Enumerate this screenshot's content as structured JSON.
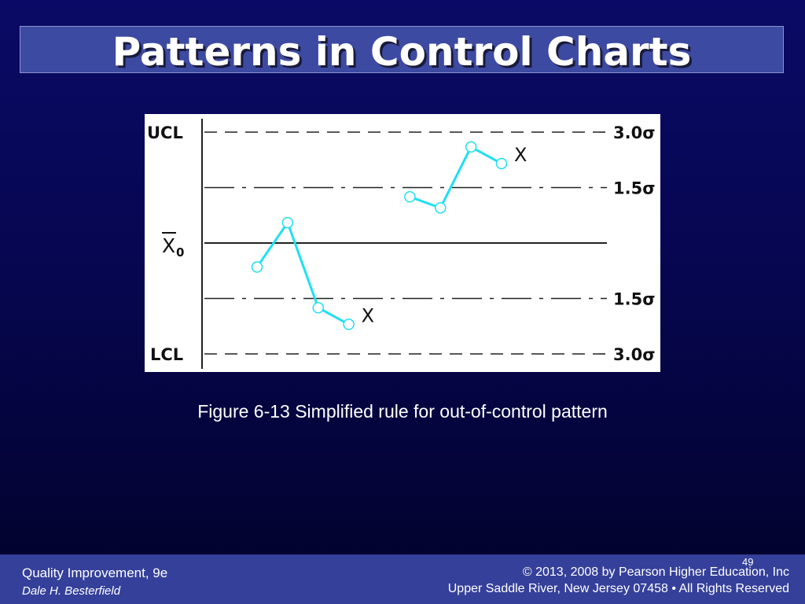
{
  "title": "Patterns in Control Charts",
  "caption": "Figure 6-13 Simplified rule for out-of-control pattern",
  "footer": {
    "book": "Quality Improvement, 9e",
    "author": "Dale H. Besterfield",
    "copyright": "© 2013, 2008 by Pearson Higher Education, Inc",
    "address": "Upper Saddle River, New Jersey 07458 • All Rights Reserved",
    "page_number": "49"
  },
  "colors": {
    "background": "#06064f",
    "title_bar": "#3d4aa2",
    "footer_bar": "#35409a",
    "series_line": "#1fe0f0"
  },
  "chart_data": {
    "type": "line",
    "title": "",
    "xlabel": "",
    "ylabel": "",
    "ylim": [
      -3.0,
      3.0
    ],
    "left_labels": {
      "ucl": "UCL",
      "center": "X̄0",
      "lcl": "LCL"
    },
    "right_labels": [
      "3.0σ",
      "1.5σ",
      "1.5σ",
      "3.0σ"
    ],
    "reference_lines": [
      {
        "value": 3.0,
        "style": "dashed"
      },
      {
        "value": 1.5,
        "style": "dash-dot"
      },
      {
        "value": 0,
        "style": "solid"
      },
      {
        "value": -1.5,
        "style": "dash-dot"
      },
      {
        "value": -3.0,
        "style": "dashed"
      }
    ],
    "series": [
      {
        "x": [
          1,
          2,
          3,
          4
        ],
        "y": [
          -0.65,
          0.55,
          -1.75,
          -2.2
        ],
        "marker_label": "X"
      },
      {
        "x": [
          6,
          7,
          8,
          9
        ],
        "y": [
          1.25,
          0.95,
          2.6,
          2.15
        ],
        "marker_label": "X"
      }
    ]
  }
}
